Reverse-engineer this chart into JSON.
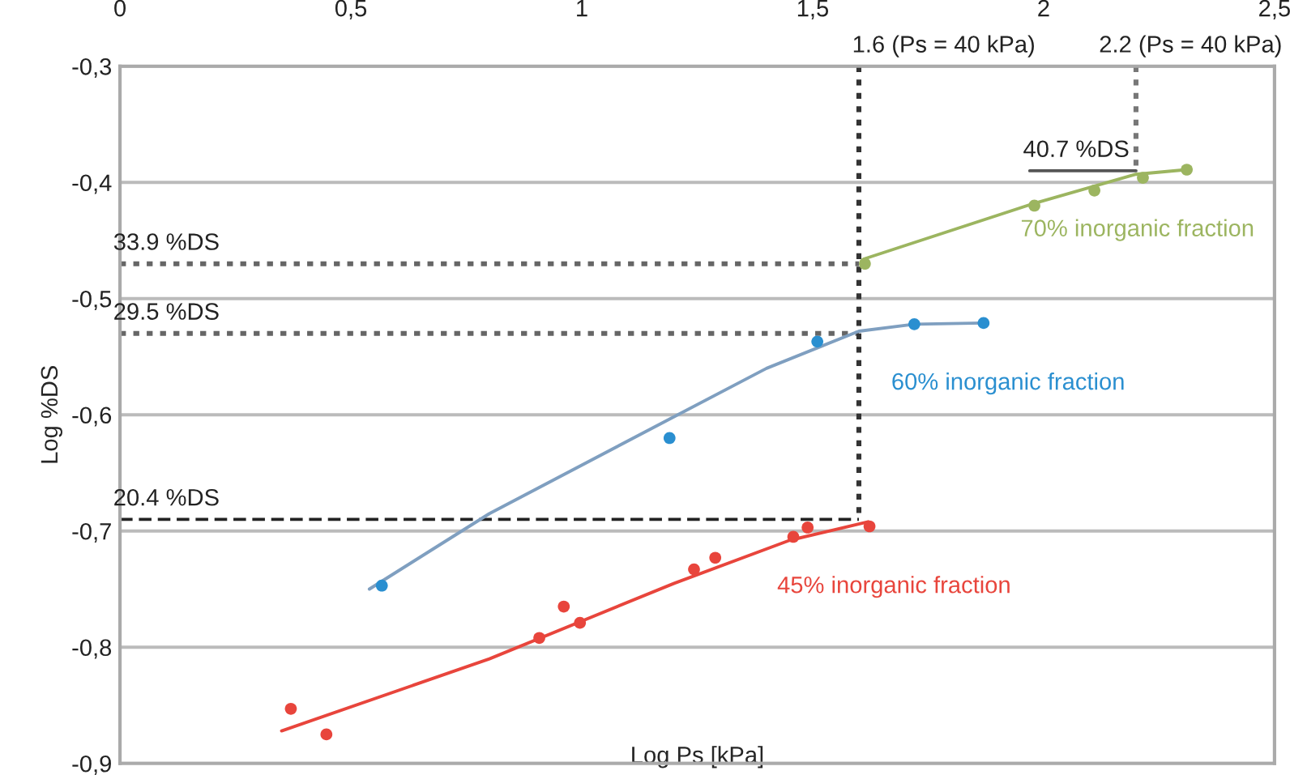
{
  "chart_data": {
    "type": "scatter",
    "xlabel": "Log Ps [kPa]",
    "ylabel": "Log %DS",
    "xlim": [
      0,
      2.5
    ],
    "ylim": [
      -0.9,
      -0.3
    ],
    "xticks": [
      {
        "value": 0,
        "label": "0"
      },
      {
        "value": 0.5,
        "label": "0,5"
      },
      {
        "value": 1,
        "label": "1"
      },
      {
        "value": 1.5,
        "label": "1,5"
      },
      {
        "value": 2,
        "label": "2"
      },
      {
        "value": 2.5,
        "label": "2,5"
      }
    ],
    "yticks": [
      {
        "value": -0.9,
        "label": "-0,9"
      },
      {
        "value": -0.8,
        "label": "-0,8"
      },
      {
        "value": -0.7,
        "label": "-0,7"
      },
      {
        "value": -0.6,
        "label": "-0,6"
      },
      {
        "value": -0.5,
        "label": "-0,5"
      },
      {
        "value": -0.4,
        "label": "-0,4"
      },
      {
        "value": -0.3,
        "label": "-0,3"
      }
    ],
    "grid": "y",
    "series": [
      {
        "type": "line",
        "color": "#666666",
        "line_style": "dotted",
        "x": [
          0,
          1.6
        ],
        "values": [
          -0.47,
          -0.47
        ]
      },
      {
        "type": "line",
        "color": "#666666",
        "line_style": "dotted",
        "x": [
          0,
          1.6
        ],
        "values": [
          -0.53,
          -0.53
        ]
      },
      {
        "type": "line",
        "color": "#222222",
        "line_style": "dashed",
        "x": [
          0,
          1.6
        ],
        "values": [
          -0.69,
          -0.69
        ]
      },
      {
        "type": "line",
        "color": "#333333",
        "line_style": "dotted",
        "x": [
          1.6,
          1.6
        ],
        "values": [
          -0.3,
          -0.69
        ]
      },
      {
        "type": "line",
        "color": "#777777",
        "line_style": "dotted",
        "x": [
          2.2,
          2.2
        ],
        "values": [
          -0.3,
          -0.39
        ]
      },
      {
        "type": "line",
        "color": "#555555",
        "line_style": "solid",
        "x": [
          1.97,
          2.2
        ],
        "values": [
          -0.39,
          -0.39
        ]
      },
      {
        "type": "line",
        "color": "#e8453c",
        "line_style": "solid",
        "x": [
          0.35,
          0.8,
          1.2,
          1.45,
          1.62
        ],
        "values": [
          -0.872,
          -0.81,
          -0.745,
          -0.708,
          -0.692
        ]
      },
      {
        "type": "line",
        "color": "#7f9fc0",
        "line_style": "solid",
        "x": [
          0.54,
          0.8,
          1.15,
          1.4,
          1.6,
          1.72,
          1.87
        ],
        "values": [
          -0.75,
          -0.685,
          -0.612,
          -0.56,
          -0.528,
          -0.522,
          -0.521
        ]
      },
      {
        "type": "line",
        "color": "#9cb560",
        "line_style": "solid",
        "x": [
          1.61,
          1.98,
          2.2,
          2.31
        ],
        "values": [
          -0.466,
          -0.418,
          -0.393,
          -0.389
        ]
      },
      {
        "marker": "circle",
        "name": "45% inorganic fraction",
        "color": "#e8453c",
        "x": [
          0.37,
          0.447,
          0.908,
          0.961,
          0.996,
          1.243,
          1.289,
          1.458,
          1.489,
          1.623
        ],
        "values": [
          -0.853,
          -0.875,
          -0.792,
          -0.765,
          -0.779,
          -0.733,
          -0.723,
          -0.705,
          -0.697,
          -0.696
        ]
      },
      {
        "marker": "circle",
        "name": "60% inorganic fraction",
        "color": "#2a8fd0",
        "x": [
          0.567,
          1.19,
          1.51,
          1.72,
          1.87
        ],
        "values": [
          -0.747,
          -0.62,
          -0.537,
          -0.522,
          -0.521
        ]
      },
      {
        "marker": "circle",
        "name": "70% inorganic fraction",
        "color": "#9cb560",
        "x": [
          1.613,
          1.98,
          2.11,
          2.215,
          2.31
        ],
        "values": [
          -0.47,
          -0.42,
          -0.407,
          -0.396,
          -0.389
        ]
      }
    ],
    "annotations": [
      {
        "text": "33.9 %DS",
        "x": 0,
        "y": -0.47
      },
      {
        "text": "29.5 %DS",
        "x": 0,
        "y": -0.53
      },
      {
        "text": "20.4 %DS",
        "x": 0,
        "y": -0.69
      },
      {
        "text": "40.7 %DS",
        "x": 1.97,
        "y": -0.39
      },
      {
        "text": "1.6 (Ps = 40 kPa)",
        "x": 1.6,
        "y": -0.3
      },
      {
        "text": "2.2 (Ps = 40 kPa)",
        "x": 2.2,
        "y": -0.3
      }
    ]
  }
}
